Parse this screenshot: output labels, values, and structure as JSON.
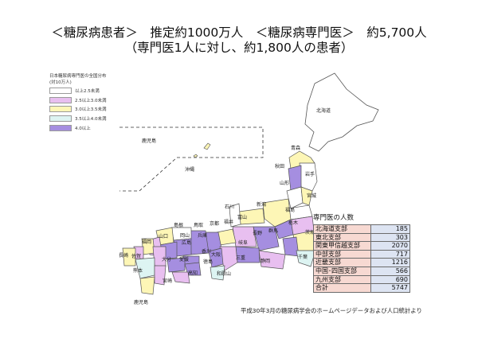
{
  "title": {
    "line1": "＜糖尿病患者＞　推定約1000万人　＜糖尿病専門医＞　約5,700人",
    "line2": "（専門医1人に対し、約1,800人の患者）"
  },
  "legend": {
    "title1": "日本糖尿病専門医の全国分布",
    "title2": "(対10万人)",
    "items": [
      {
        "label": "以上2.5未満",
        "color": "#ffffff"
      },
      {
        "label": "2.5以上3.0未満",
        "color": "#e8bff0"
      },
      {
        "label": "3.0以上3.5未満",
        "color": "#fdf6b6"
      },
      {
        "label": "3.5以上4.0未満",
        "color": "#ddf4f2"
      },
      {
        "label": "4.0以上",
        "color": "#a58ee0"
      }
    ]
  },
  "map_labels": [
    "北海道",
    "青森",
    "秋田",
    "岩手",
    "山形",
    "宮城",
    "新潟",
    "福島",
    "栃木",
    "群馬",
    "茨城",
    "千葉",
    "長野",
    "富山",
    "石川",
    "福井",
    "岐阜",
    "静岡",
    "三重",
    "大阪",
    "京都",
    "兵庫",
    "鳥取",
    "島根",
    "岡山",
    "山口",
    "広島",
    "香川",
    "愛媛",
    "徳島",
    "高知",
    "和歌山",
    "福岡",
    "佐賀",
    "長崎",
    "熊本",
    "大分",
    "宮崎",
    "鹿児島",
    "沖縄",
    "鹿児島"
  ],
  "table": {
    "title": "専門医の人数",
    "rows": [
      {
        "name": "北海道支部",
        "value": "185"
      },
      {
        "name": "東北支部",
        "value": "303"
      },
      {
        "name": "関東甲信越支部",
        "value": "2070"
      },
      {
        "name": "中部支部",
        "value": "717"
      },
      {
        "name": "近畿支部",
        "value": "1216"
      },
      {
        "name": "中国･四国支部",
        "value": "566"
      },
      {
        "name": "九州支部",
        "value": "690"
      },
      {
        "name": "合計",
        "value": "5747"
      }
    ]
  },
  "source": "平成30年3月の糖尿病学会のホームページデータおよび人口統計より"
}
